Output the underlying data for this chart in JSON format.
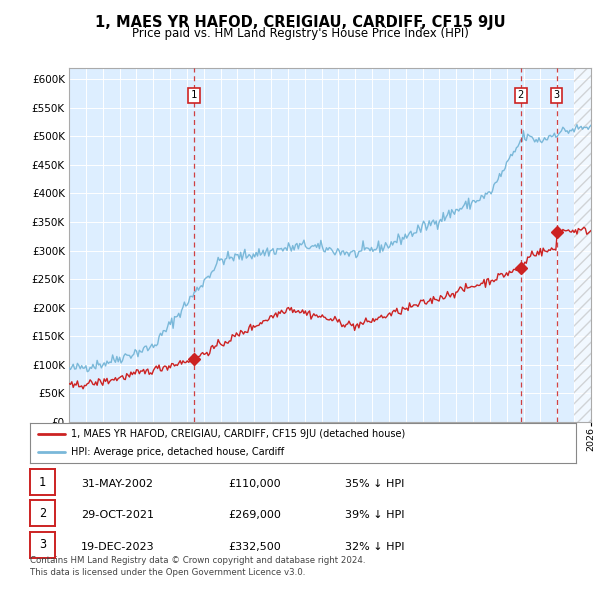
{
  "title": "1, MAES YR HAFOD, CREIGIAU, CARDIFF, CF15 9JU",
  "subtitle": "Price paid vs. HM Land Registry's House Price Index (HPI)",
  "title_fontsize": 10.5,
  "subtitle_fontsize": 8.5,
  "plot_bg_color": "#ddeeff",
  "hpi_color": "#7ab8d9",
  "price_color": "#cc2222",
  "marker_color": "#cc2222",
  "ylim": [
    0,
    620000
  ],
  "yticks": [
    0,
    50000,
    100000,
    150000,
    200000,
    250000,
    300000,
    350000,
    400000,
    450000,
    500000,
    550000,
    600000
  ],
  "purchases": [
    {
      "date": 2002.42,
      "price": 110000,
      "label": "1",
      "date_str": "31-MAY-2002",
      "price_str": "£110,000",
      "pct_str": "35% ↓ HPI"
    },
    {
      "date": 2021.83,
      "price": 269000,
      "label": "2",
      "date_str": "29-OCT-2021",
      "price_str": "£269,000",
      "pct_str": "39% ↓ HPI"
    },
    {
      "date": 2023.96,
      "price": 332500,
      "label": "3",
      "date_str": "19-DEC-2023",
      "price_str": "£332,500",
      "pct_str": "32% ↓ HPI"
    }
  ],
  "legend_entry1": "1, MAES YR HAFOD, CREIGIAU, CARDIFF, CF15 9JU (detached house)",
  "legend_entry2": "HPI: Average price, detached house, Cardiff",
  "footnote1": "Contains HM Land Registry data © Crown copyright and database right 2024.",
  "footnote2": "This data is licensed under the Open Government Licence v3.0.",
  "xmin": 1995,
  "xmax": 2026
}
